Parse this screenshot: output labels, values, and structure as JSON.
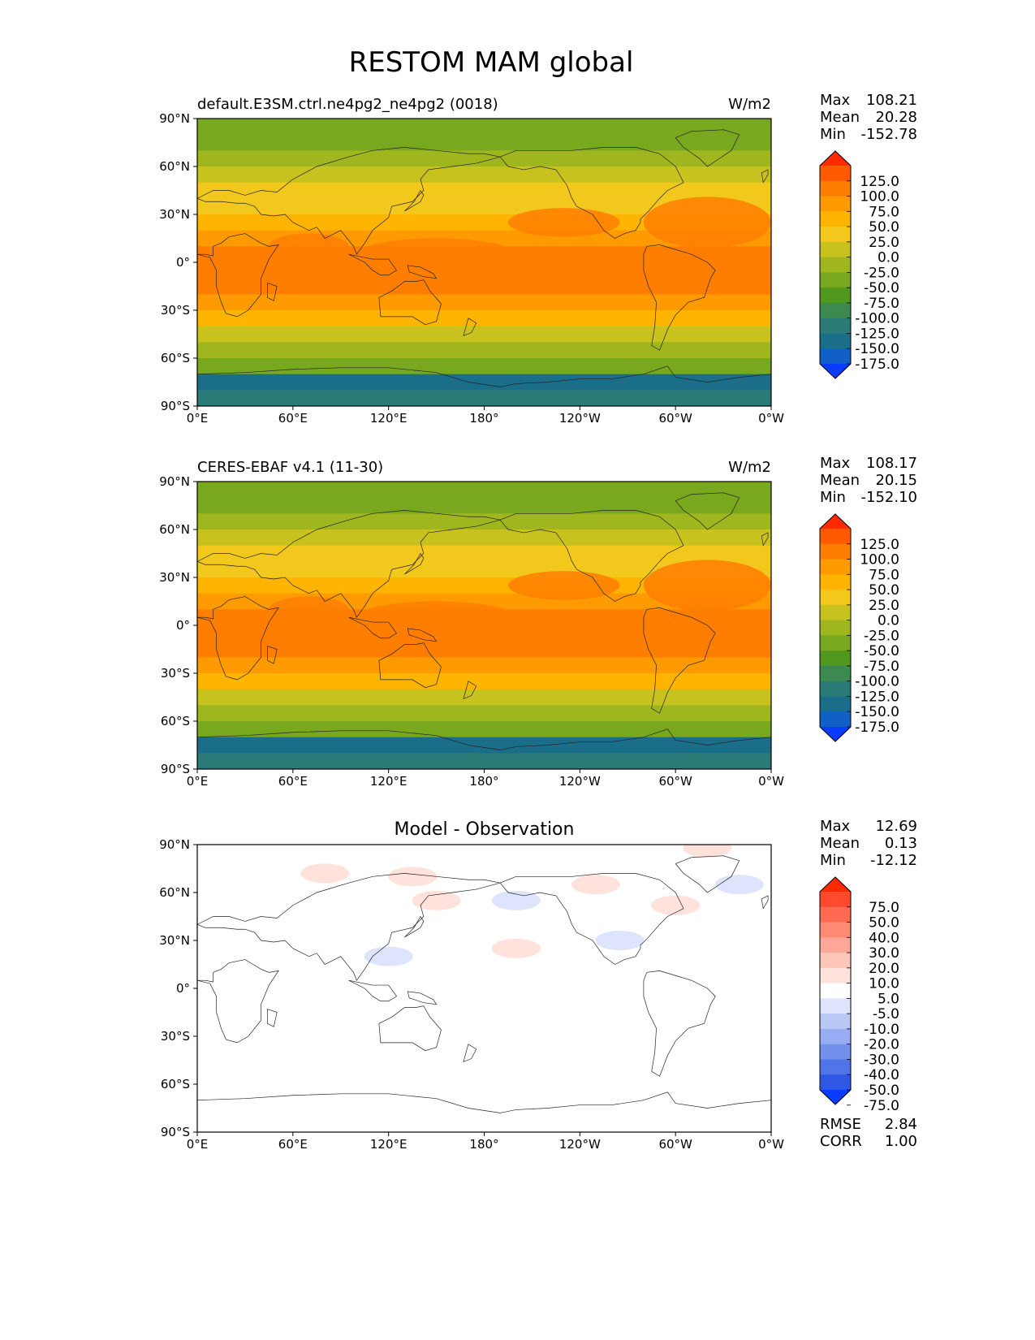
{
  "figure": {
    "title": "RESTOM MAM global"
  },
  "panels": [
    {
      "id": "test",
      "left_title": "default.E3SM.ctrl.ne4pg2_ne4pg2 (0018)",
      "center_title": "",
      "units": "W/m2",
      "stats": {
        "labels": [
          "Max",
          "Mean",
          "Min"
        ],
        "values": [
          "108.21",
          "20.28",
          "-152.78"
        ]
      },
      "colorbar": {
        "levels": [
          "125.0",
          "100.0",
          "75.0",
          "50.0",
          "25.0",
          "0.0",
          "-25.0",
          "-50.0",
          "-75.0",
          "-100.0",
          "-125.0",
          "-150.0",
          "-175.0"
        ],
        "colors": [
          "#ff2a00",
          "#ff5a00",
          "#ff7e00",
          "#ff9a00",
          "#ffb400",
          "#f2c81c",
          "#c8c21e",
          "#a0b61e",
          "#78a81e",
          "#50981e",
          "#3c8a50",
          "#2a7a78",
          "#1a6e8a",
          "#1060c8",
          "#0a3cff"
        ]
      }
    },
    {
      "id": "ref",
      "left_title": "CERES-EBAF v4.1 (11-30)",
      "center_title": "",
      "units": "W/m2",
      "stats": {
        "labels": [
          "Max",
          "Mean",
          "Min"
        ],
        "values": [
          "108.17",
          "20.15",
          "-152.10"
        ]
      },
      "colorbar": {
        "levels": [
          "125.0",
          "100.0",
          "75.0",
          "50.0",
          "25.0",
          "0.0",
          "-25.0",
          "-50.0",
          "-75.0",
          "-100.0",
          "-125.0",
          "-150.0",
          "-175.0"
        ],
        "colors": [
          "#ff2a00",
          "#ff5a00",
          "#ff7e00",
          "#ff9a00",
          "#ffb400",
          "#f2c81c",
          "#c8c21e",
          "#a0b61e",
          "#78a81e",
          "#50981e",
          "#3c8a50",
          "#2a7a78",
          "#1a6e8a",
          "#1060c8",
          "#0a3cff"
        ]
      }
    },
    {
      "id": "diff",
      "left_title": "",
      "center_title": "Model - Observation",
      "units": "",
      "stats": {
        "labels": [
          "Max",
          "Mean",
          "Min"
        ],
        "values": [
          "12.69",
          "0.13",
          "-12.12"
        ]
      },
      "colorbar": {
        "levels": [
          "75.0",
          "50.0",
          "40.0",
          "30.0",
          "20.0",
          "10.0",
          "5.0",
          "-5.0",
          "-10.0",
          "-20.0",
          "-30.0",
          "-40.0",
          "-50.0",
          "-75.0"
        ],
        "colors": [
          "#ff2a00",
          "#ff4a2e",
          "#ff6a50",
          "#ff8a74",
          "#ffa898",
          "#ffc6ba",
          "#ffe2dc",
          "#ffffff",
          "#dde4fb",
          "#bac8f6",
          "#97acf2",
          "#7490ed",
          "#5174e8",
          "#2e58e3",
          "#0a3cff"
        ]
      },
      "metrics": {
        "labels": [
          "RMSE",
          "CORR"
        ],
        "values": [
          "2.84",
          "1.00"
        ]
      }
    }
  ],
  "axes": {
    "x_ticks": [
      "0°E",
      "60°E",
      "120°E",
      "180°",
      "120°W",
      "60°W",
      "0°W"
    ],
    "y_ticks": [
      "90°N",
      "60°N",
      "30°N",
      "0°",
      "30°S",
      "60°S",
      "90°S"
    ]
  },
  "map_bands": {
    "latitudes": [
      90,
      80,
      70,
      60,
      50,
      40,
      30,
      20,
      10,
      0,
      -10,
      -20,
      -30,
      -40,
      -50,
      -60,
      -70,
      -80,
      -90
    ],
    "mean_field_level_index": [
      8,
      8,
      7,
      6,
      5,
      5,
      4,
      3,
      2,
      2,
      2,
      3,
      4,
      6,
      7,
      8,
      12,
      11,
      11
    ]
  },
  "anomalies": [
    {
      "panel": 2,
      "lon": 80,
      "lat": 72,
      "sign": "pos"
    },
    {
      "panel": 2,
      "lon": 135,
      "lat": 70,
      "sign": "pos"
    },
    {
      "panel": 2,
      "lon": 200,
      "lat": 55,
      "sign": "neg"
    },
    {
      "panel": 2,
      "lon": 150,
      "lat": 55,
      "sign": "pos"
    },
    {
      "panel": 2,
      "lon": 250,
      "lat": 65,
      "sign": "pos"
    },
    {
      "panel": 2,
      "lon": 300,
      "lat": 52,
      "sign": "pos"
    },
    {
      "panel": 2,
      "lon": 265,
      "lat": 30,
      "sign": "neg"
    },
    {
      "panel": 2,
      "lon": 120,
      "lat": 20,
      "sign": "neg"
    },
    {
      "panel": 2,
      "lon": 200,
      "lat": 25,
      "sign": "pos"
    },
    {
      "panel": 2,
      "lon": 320,
      "lat": 88,
      "sign": "pos"
    },
    {
      "panel": 2,
      "lon": 340,
      "lat": 65,
      "sign": "neg"
    }
  ]
}
